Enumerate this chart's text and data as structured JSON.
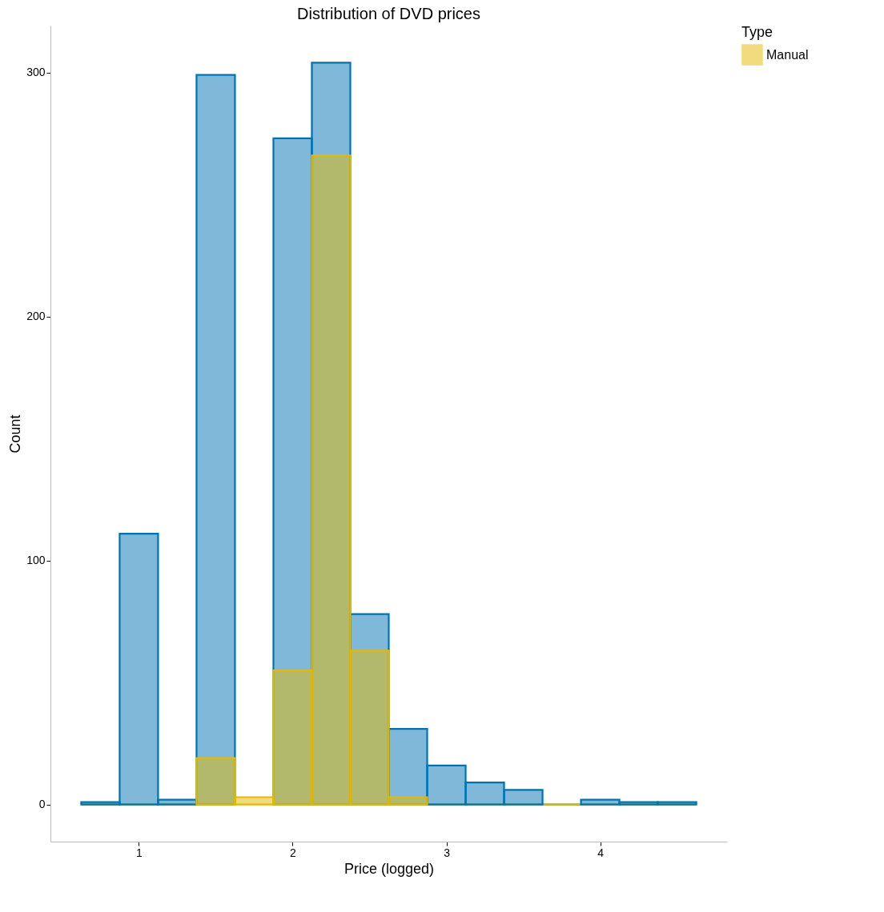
{
  "chart_data": {
    "type": "histogram",
    "title": "Distribution of DVD prices",
    "xlabel": "Price (logged)",
    "ylabel": "Count",
    "legend_title": "Type",
    "bins": [
      0.625,
      0.875,
      1.125,
      1.375,
      1.625,
      1.875,
      2.125,
      2.375,
      2.625,
      2.875,
      3.125,
      3.375,
      3.625,
      3.875,
      4.125,
      4.375,
      4.625
    ],
    "series": [
      {
        "color": "#0072b2",
        "values": [
          1,
          111,
          2,
          299,
          null,
          273,
          304,
          78,
          31,
          16,
          9,
          6,
          0,
          2,
          1,
          1
        ]
      },
      {
        "name": "Manual",
        "color": "#e6b800",
        "values": [
          0,
          0,
          0,
          19,
          3,
          55,
          266,
          63,
          3,
          0,
          0,
          0,
          0,
          0,
          0,
          0
        ]
      }
    ],
    "xlim": [
      0.425,
      4.825
    ],
    "xticks": [
      1,
      2,
      3,
      4
    ],
    "ylim": [
      -15.2,
      319.2
    ],
    "yticks": [
      0,
      100,
      200,
      300
    ],
    "grid": false,
    "legend": "right"
  }
}
